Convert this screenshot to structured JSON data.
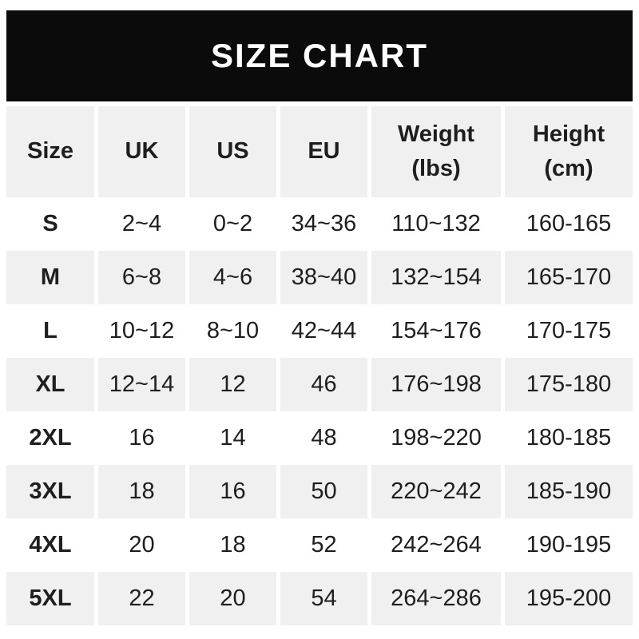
{
  "chart_data": {
    "type": "table",
    "title": "SIZE CHART",
    "columns": [
      "Size",
      "UK",
      "US",
      "EU",
      "Weight\n(lbs)",
      "Height\n(cm)"
    ],
    "rows": [
      [
        "S",
        "2~4",
        "0~2",
        "34~36",
        "110~132",
        "160-165"
      ],
      [
        "M",
        "6~8",
        "4~6",
        "38~40",
        "132~154",
        "165-170"
      ],
      [
        "L",
        "10~12",
        "8~10",
        "42~44",
        "154~176",
        "170-175"
      ],
      [
        "XL",
        "12~14",
        "12",
        "46",
        "176~198",
        "175-180"
      ],
      [
        "2XL",
        "16",
        "14",
        "48",
        "198~220",
        "180-185"
      ],
      [
        "3XL",
        "18",
        "16",
        "50",
        "220~242",
        "185-190"
      ],
      [
        "4XL",
        "20",
        "18",
        "52",
        "242~264",
        "190-195"
      ],
      [
        "5XL",
        "22",
        "20",
        "54",
        "264~286",
        "195-200"
      ]
    ]
  },
  "colors": {
    "banner_bg": "#0b0b0b",
    "banner_text": "#ffffff",
    "cell_gray": "#f0f0f0",
    "text": "#1e1e1e"
  }
}
